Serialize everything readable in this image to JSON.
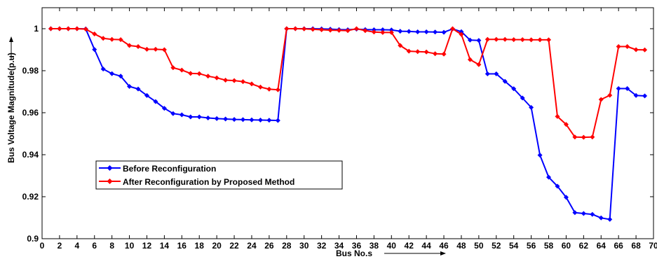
{
  "chart_data": {
    "type": "line",
    "title": "",
    "xlabel": "Bus No.s",
    "ylabel": "Bus Voltage Magnitude(p.u)",
    "xlim": [
      0,
      70
    ],
    "ylim": [
      0.9,
      1.01
    ],
    "xticks": [
      "0",
      "2",
      "4",
      "6",
      "8",
      "10",
      "12",
      "14",
      "16",
      "18",
      "20",
      "22",
      "24",
      "26",
      "28",
      "30",
      "32",
      "34",
      "36",
      "38",
      "40",
      "42",
      "44",
      "46",
      "48",
      "50",
      "52",
      "54",
      "56",
      "58",
      "60",
      "62",
      "64",
      "66",
      "68",
      "70"
    ],
    "yticks": [
      "0.9",
      "0.92",
      "0.94",
      "0.96",
      "0.98",
      "1"
    ],
    "grid": false,
    "legend_position": "lower-left",
    "series": [
      {
        "name": "Before Reconfiguration",
        "color": "#0000ff",
        "marker": "diamond",
        "x": [
          1,
          2,
          3,
          4,
          5,
          6,
          7,
          8,
          9,
          10,
          11,
          12,
          13,
          14,
          15,
          16,
          17,
          18,
          19,
          20,
          21,
          22,
          23,
          24,
          25,
          26,
          27,
          28,
          29,
          30,
          31,
          32,
          33,
          34,
          35,
          36,
          37,
          38,
          39,
          40,
          41,
          42,
          43,
          44,
          45,
          46,
          47,
          48,
          49,
          50,
          51,
          52,
          53,
          54,
          55,
          56,
          57,
          58,
          59,
          60,
          61,
          62,
          63,
          64,
          65,
          66,
          67,
          68,
          69
        ],
        "values": [
          1.0,
          1.0,
          1.0,
          1.0,
          0.9999,
          0.9901,
          0.9808,
          0.9786,
          0.9774,
          0.9725,
          0.9713,
          0.9682,
          0.9653,
          0.9621,
          0.9596,
          0.959,
          0.958,
          0.958,
          0.9575,
          0.9572,
          0.957,
          0.9568,
          0.9567,
          0.9566,
          0.9565,
          0.9564,
          0.9563,
          1.0,
          1.0,
          1.0,
          1.0,
          0.9999,
          0.9998,
          0.9996,
          0.9995,
          0.9998,
          0.9996,
          0.9995,
          0.9995,
          0.9994,
          0.9988,
          0.9987,
          0.9985,
          0.9985,
          0.9984,
          0.9983,
          0.9999,
          0.9986,
          0.9946,
          0.9944,
          0.9785,
          0.9785,
          0.9749,
          0.9714,
          0.967,
          0.9625,
          0.9398,
          0.9293,
          0.925,
          0.9197,
          0.9124,
          0.912,
          0.9116,
          0.9099,
          0.9092,
          0.9715,
          0.9715,
          0.9682,
          0.968
        ]
      },
      {
        "name": "After Reconfiguration by Proposed Method",
        "color": "#ff0000",
        "marker": "diamond",
        "x": [
          1,
          2,
          3,
          4,
          5,
          6,
          7,
          8,
          9,
          10,
          11,
          12,
          13,
          14,
          15,
          16,
          17,
          18,
          19,
          20,
          21,
          22,
          23,
          24,
          25,
          26,
          27,
          28,
          29,
          30,
          31,
          32,
          33,
          34,
          35,
          36,
          37,
          38,
          39,
          40,
          41,
          42,
          43,
          44,
          45,
          46,
          47,
          48,
          49,
          50,
          51,
          52,
          53,
          54,
          55,
          56,
          57,
          58,
          59,
          60,
          61,
          62,
          63,
          64,
          65,
          66,
          67,
          68,
          69
        ],
        "values": [
          1.0,
          1.0,
          1.0,
          1.0,
          0.9998,
          0.9975,
          0.9954,
          0.9949,
          0.9948,
          0.992,
          0.9915,
          0.9902,
          0.9902,
          0.99,
          0.9814,
          0.9803,
          0.9787,
          0.9786,
          0.9774,
          0.9766,
          0.9755,
          0.9753,
          0.9748,
          0.9737,
          0.9722,
          0.9712,
          0.9709,
          1.0,
          1.0,
          0.9999,
          0.9997,
          0.9995,
          0.9993,
          0.9992,
          0.9991,
          1.0,
          0.9991,
          0.9984,
          0.9982,
          0.9982,
          0.992,
          0.9893,
          0.9891,
          0.9889,
          0.9881,
          0.9879,
          1.0,
          0.9973,
          0.9853,
          0.9829,
          0.9949,
          0.9949,
          0.9949,
          0.9948,
          0.9948,
          0.9947,
          0.9947,
          0.9947,
          0.9582,
          0.9544,
          0.9484,
          0.9483,
          0.9484,
          0.9663,
          0.9683,
          0.9915,
          0.9915,
          0.99,
          0.9899
        ]
      }
    ]
  }
}
